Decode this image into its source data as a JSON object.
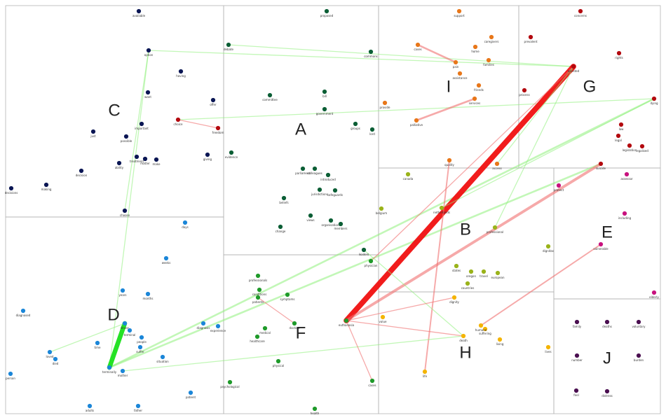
{
  "colors": {
    "A": "#0b5e35",
    "B": "#9ab31a",
    "C": "#0a1654",
    "D": "#1b86d8",
    "E": "#c8127e",
    "F": "#1f9a2a",
    "G": "#b3090f",
    "H": "#f4b400",
    "I": "#e8771a",
    "J": "#4a0f50",
    "edge_green": "#8ff07c",
    "edge_red": "#f07070",
    "edge_strong_red": "#f01010",
    "edge_strong_green": "#18e018"
  },
  "clusters": [
    {
      "id": "A",
      "label": "A"
    },
    {
      "id": "B",
      "label": "B"
    },
    {
      "id": "C",
      "label": "C"
    },
    {
      "id": "D",
      "label": "D"
    },
    {
      "id": "E",
      "label": "E"
    },
    {
      "id": "F",
      "label": "F"
    },
    {
      "id": "G",
      "label": "G"
    },
    {
      "id": "H",
      "label": "H"
    },
    {
      "id": "I",
      "label": "I"
    },
    {
      "id": "J",
      "label": "J"
    }
  ],
  "nodes": [
    {
      "id": "available",
      "label": "available",
      "group": "C"
    },
    {
      "id": "option",
      "label": "option",
      "group": "C"
    },
    {
      "id": "having",
      "label": "having",
      "group": "C"
    },
    {
      "id": "want",
      "label": "want",
      "group": "C"
    },
    {
      "id": "offer",
      "label": "offer",
      "group": "C"
    },
    {
      "id": "important",
      "label": "important",
      "group": "C"
    },
    {
      "id": "possible",
      "label": "possible",
      "group": "C"
    },
    {
      "id": "just",
      "label": "just",
      "group": "C"
    },
    {
      "id": "ability",
      "label": "ability",
      "group": "C"
    },
    {
      "id": "treatment_c",
      "label": "treatment",
      "group": "C"
    },
    {
      "id": "matter",
      "label": "matter",
      "group": "C"
    },
    {
      "id": "make",
      "label": "make",
      "group": "C"
    },
    {
      "id": "giving",
      "label": "giving",
      "group": "C"
    },
    {
      "id": "decision",
      "label": "decision",
      "group": "C"
    },
    {
      "id": "making",
      "label": "making",
      "group": "C"
    },
    {
      "id": "decisions",
      "label": "decisions",
      "group": "C"
    },
    {
      "id": "choose",
      "label": "choose",
      "group": "C"
    },
    {
      "id": "choice",
      "label": "choice",
      "group": "G"
    },
    {
      "id": "freedom",
      "label": "freedom",
      "group": "G"
    },
    {
      "id": "proposed",
      "label": "proposed",
      "group": "A"
    },
    {
      "id": "debate",
      "label": "debate",
      "group": "A"
    },
    {
      "id": "commons",
      "label": "commons",
      "group": "A"
    },
    {
      "id": "committee",
      "label": "committee",
      "group": "A"
    },
    {
      "id": "bill",
      "label": "bill",
      "group": "A"
    },
    {
      "id": "government",
      "label": "government",
      "group": "A"
    },
    {
      "id": "groups",
      "label": "groups",
      "group": "A"
    },
    {
      "id": "lord",
      "label": "lord",
      "group": "A"
    },
    {
      "id": "evidence",
      "label": "evidence",
      "group": "A"
    },
    {
      "id": "colleagues",
      "label": "colleagues",
      "group": "A"
    },
    {
      "id": "parliament",
      "label": "parliament",
      "group": "A"
    },
    {
      "id": "introduced",
      "label": "introduced",
      "group": "A"
    },
    {
      "id": "jurisdictions",
      "label": "jurisdictions",
      "group": "A"
    },
    {
      "id": "safeguards",
      "label": "safeguards",
      "group": "A"
    },
    {
      "id": "beliefs",
      "label": "beliefs",
      "group": "A"
    },
    {
      "id": "views",
      "label": "views",
      "group": "A"
    },
    {
      "id": "organisations",
      "label": "organisations",
      "group": "A"
    },
    {
      "id": "members",
      "label": "members",
      "group": "A"
    },
    {
      "id": "change",
      "label": "change",
      "group": "A"
    },
    {
      "id": "leaders",
      "label": "leaders",
      "group": "A"
    },
    {
      "id": "support",
      "label": "support",
      "group": "I"
    },
    {
      "id": "caregivers",
      "label": "caregivers",
      "group": "I"
    },
    {
      "id": "cases",
      "label": "cases",
      "group": "I"
    },
    {
      "id": "pain",
      "label": "pain",
      "group": "I"
    },
    {
      "id": "home",
      "label": "home",
      "group": "I"
    },
    {
      "id": "families",
      "label": "families",
      "group": "I"
    },
    {
      "id": "assistance",
      "label": "assistance",
      "group": "I"
    },
    {
      "id": "friends",
      "label": "friends",
      "group": "I"
    },
    {
      "id": "services",
      "label": "services",
      "group": "I"
    },
    {
      "id": "provide",
      "label": "provide",
      "group": "I"
    },
    {
      "id": "palliative",
      "label": "palliative",
      "group": "I"
    },
    {
      "id": "quality",
      "label": "quality",
      "group": "I"
    },
    {
      "id": "access",
      "label": "access",
      "group": "I"
    },
    {
      "id": "concerns",
      "label": "concerns",
      "group": "G"
    },
    {
      "id": "prevalent",
      "label": "prevalent",
      "group": "G"
    },
    {
      "id": "rights",
      "label": "rights",
      "group": "G"
    },
    {
      "id": "assisted",
      "label": "assisted",
      "group": "G"
    },
    {
      "id": "process",
      "label": "process",
      "group": "G"
    },
    {
      "id": "dying",
      "label": "dying",
      "group": "G"
    },
    {
      "id": "law",
      "label": "law",
      "group": "G"
    },
    {
      "id": "legal",
      "label": "legal",
      "group": "G"
    },
    {
      "id": "legislation",
      "label": "legislation",
      "group": "G"
    },
    {
      "id": "legalised",
      "label": "legalised",
      "group": "G"
    },
    {
      "id": "suicide",
      "label": "suicide",
      "group": "G"
    },
    {
      "id": "canada",
      "label": "canada",
      "group": "B"
    },
    {
      "id": "belgium",
      "label": "belgium",
      "group": "B"
    },
    {
      "id": "netherlands",
      "label": "netherlands",
      "group": "B"
    },
    {
      "id": "professional",
      "label": "professional",
      "group": "B"
    },
    {
      "id": "dignitas",
      "label": "dignitas",
      "group": "B"
    },
    {
      "id": "countries",
      "label": "countries",
      "group": "B"
    },
    {
      "id": "european",
      "label": "european",
      "group": "B"
    },
    {
      "id": "travel",
      "label": "travel",
      "group": "B"
    },
    {
      "id": "oregon",
      "label": "oregon",
      "group": "B"
    },
    {
      "id": "states",
      "label": "states",
      "group": "B"
    },
    {
      "id": "assessor",
      "label": "assessor",
      "group": "E"
    },
    {
      "id": "protect",
      "label": "protect",
      "group": "E"
    },
    {
      "id": "including",
      "label": "including",
      "group": "E"
    },
    {
      "id": "vulnerable",
      "label": "vulnerable",
      "group": "E"
    },
    {
      "id": "elderly",
      "label": "elderly",
      "group": "E"
    },
    {
      "id": "days",
      "label": "days",
      "group": "D"
    },
    {
      "id": "weeks",
      "label": "weeks",
      "group": "D"
    },
    {
      "id": "years",
      "label": "years",
      "group": "D"
    },
    {
      "id": "months",
      "label": "months",
      "group": "D"
    },
    {
      "id": "diagnosed",
      "label": "diagnosed",
      "group": "D"
    },
    {
      "id": "illness",
      "label": "illness",
      "group": "D"
    },
    {
      "id": "terminal_d",
      "label": "terminal",
      "group": "D"
    },
    {
      "id": "people",
      "label": "people",
      "group": "D"
    },
    {
      "id": "suffer",
      "label": "suffer",
      "group": "D"
    },
    {
      "id": "diagnosis",
      "label": "diagnosis",
      "group": "D"
    },
    {
      "id": "experience",
      "label": "experience",
      "group": "D"
    },
    {
      "id": "situation",
      "label": "situation",
      "group": "D"
    },
    {
      "id": "time",
      "label": "time",
      "group": "D"
    },
    {
      "id": "loved",
      "label": "loved",
      "group": "D"
    },
    {
      "id": "died",
      "label": "died",
      "group": "D"
    },
    {
      "id": "terminally",
      "label": "terminally",
      "group": "D"
    },
    {
      "id": "mother",
      "label": "mother",
      "group": "D"
    },
    {
      "id": "person",
      "label": "person",
      "group": "D"
    },
    {
      "id": "adults",
      "label": "adults",
      "group": "D"
    },
    {
      "id": "father",
      "label": "father",
      "group": "D"
    },
    {
      "id": "patient",
      "label": "patient",
      "group": "D"
    },
    {
      "id": "professionals",
      "label": "professionals",
      "group": "F"
    },
    {
      "id": "conditions",
      "label": "conditions",
      "group": "F"
    },
    {
      "id": "symptoms",
      "label": "symptoms",
      "group": "F"
    },
    {
      "id": "patients",
      "label": "patients",
      "group": "F"
    },
    {
      "id": "doctors",
      "label": "doctors",
      "group": "F"
    },
    {
      "id": "healthcare",
      "label": "healthcare",
      "group": "F"
    },
    {
      "id": "medical",
      "label": "medical",
      "group": "F"
    },
    {
      "id": "physical",
      "label": "physical",
      "group": "F"
    },
    {
      "id": "psychological",
      "label": "psychological",
      "group": "F"
    },
    {
      "id": "health",
      "label": "health",
      "group": "F"
    },
    {
      "id": "physician",
      "label": "physician",
      "group": "F"
    },
    {
      "id": "euthanasia",
      "label": "euthanasia",
      "group": "F"
    },
    {
      "id": "cases_f",
      "label": "cases",
      "group": "F"
    },
    {
      "id": "value",
      "label": "value",
      "group": "H"
    },
    {
      "id": "death",
      "label": "death",
      "group": "H"
    },
    {
      "id": "suffering",
      "label": "suffering",
      "group": "H"
    },
    {
      "id": "humane",
      "label": "humane",
      "group": "H"
    },
    {
      "id": "dignity",
      "label": "dignity",
      "group": "H"
    },
    {
      "id": "life",
      "label": "life",
      "group": "H"
    },
    {
      "id": "living",
      "label": "living",
      "group": "H"
    },
    {
      "id": "lives",
      "label": "lives",
      "group": "H"
    },
    {
      "id": "family",
      "label": "family",
      "group": "J"
    },
    {
      "id": "deaths",
      "label": "deaths",
      "group": "J"
    },
    {
      "id": "voluntary",
      "label": "voluntary",
      "group": "J"
    },
    {
      "id": "number",
      "label": "number",
      "group": "J"
    },
    {
      "id": "burden",
      "label": "burden",
      "group": "J"
    },
    {
      "id": "feel",
      "label": "feel",
      "group": "J"
    },
    {
      "id": "distress",
      "label": "distress",
      "group": "J"
    }
  ],
  "edges": [
    {
      "source": "option",
      "target": "assisted",
      "kind": "green",
      "strength": 1
    },
    {
      "source": "choice",
      "target": "dying",
      "kind": "green",
      "strength": 1
    },
    {
      "source": "debate",
      "target": "assisted",
      "kind": "green",
      "strength": 1
    },
    {
      "source": "terminally",
      "target": "suicide",
      "kind": "green",
      "strength": 2
    },
    {
      "source": "terminally",
      "target": "dying",
      "kind": "green",
      "strength": 2
    },
    {
      "source": "terminally",
      "target": "option",
      "kind": "green",
      "strength": 1
    },
    {
      "source": "terminally",
      "target": "illness",
      "kind": "strong_green",
      "strength": 5
    },
    {
      "source": "euthanasia",
      "target": "assisted",
      "kind": "strong_red",
      "strength": 6
    },
    {
      "source": "euthanasia",
      "target": "suicide",
      "kind": "red",
      "strength": 3
    },
    {
      "source": "cases",
      "target": "pain",
      "kind": "red",
      "strength": 2
    },
    {
      "source": "palliative",
      "target": "services",
      "kind": "red",
      "strength": 2
    },
    {
      "source": "life",
      "target": "quality",
      "kind": "red",
      "strength": 1.5
    },
    {
      "source": "humane",
      "target": "vulnerable",
      "kind": "red",
      "strength": 1.5
    },
    {
      "source": "choice",
      "target": "freedom",
      "kind": "red",
      "strength": 1
    },
    {
      "source": "assisted",
      "target": "access",
      "kind": "green",
      "strength": 1
    },
    {
      "source": "netherlands",
      "target": "dying",
      "kind": "green",
      "strength": 1
    },
    {
      "source": "leaders",
      "target": "death",
      "kind": "green",
      "strength": 1
    },
    {
      "source": "physician",
      "target": "assisted",
      "kind": "red",
      "strength": 1
    },
    {
      "source": "patients",
      "target": "doctors",
      "kind": "red",
      "strength": 1
    },
    {
      "source": "loved",
      "target": "illness",
      "kind": "green",
      "strength": 1
    },
    {
      "source": "mother",
      "target": "death",
      "kind": "green",
      "strength": 1
    },
    {
      "source": "choose",
      "target": "option",
      "kind": "green",
      "strength": 1
    },
    {
      "source": "professional",
      "target": "assisted",
      "kind": "green",
      "strength": 1
    },
    {
      "source": "euthanasia",
      "target": "death",
      "kind": "red",
      "strength": 1
    },
    {
      "source": "euthanasia",
      "target": "cases_f",
      "kind": "red",
      "strength": 1
    },
    {
      "source": "dignity",
      "target": "euthanasia",
      "kind": "red",
      "strength": 1
    }
  ]
}
